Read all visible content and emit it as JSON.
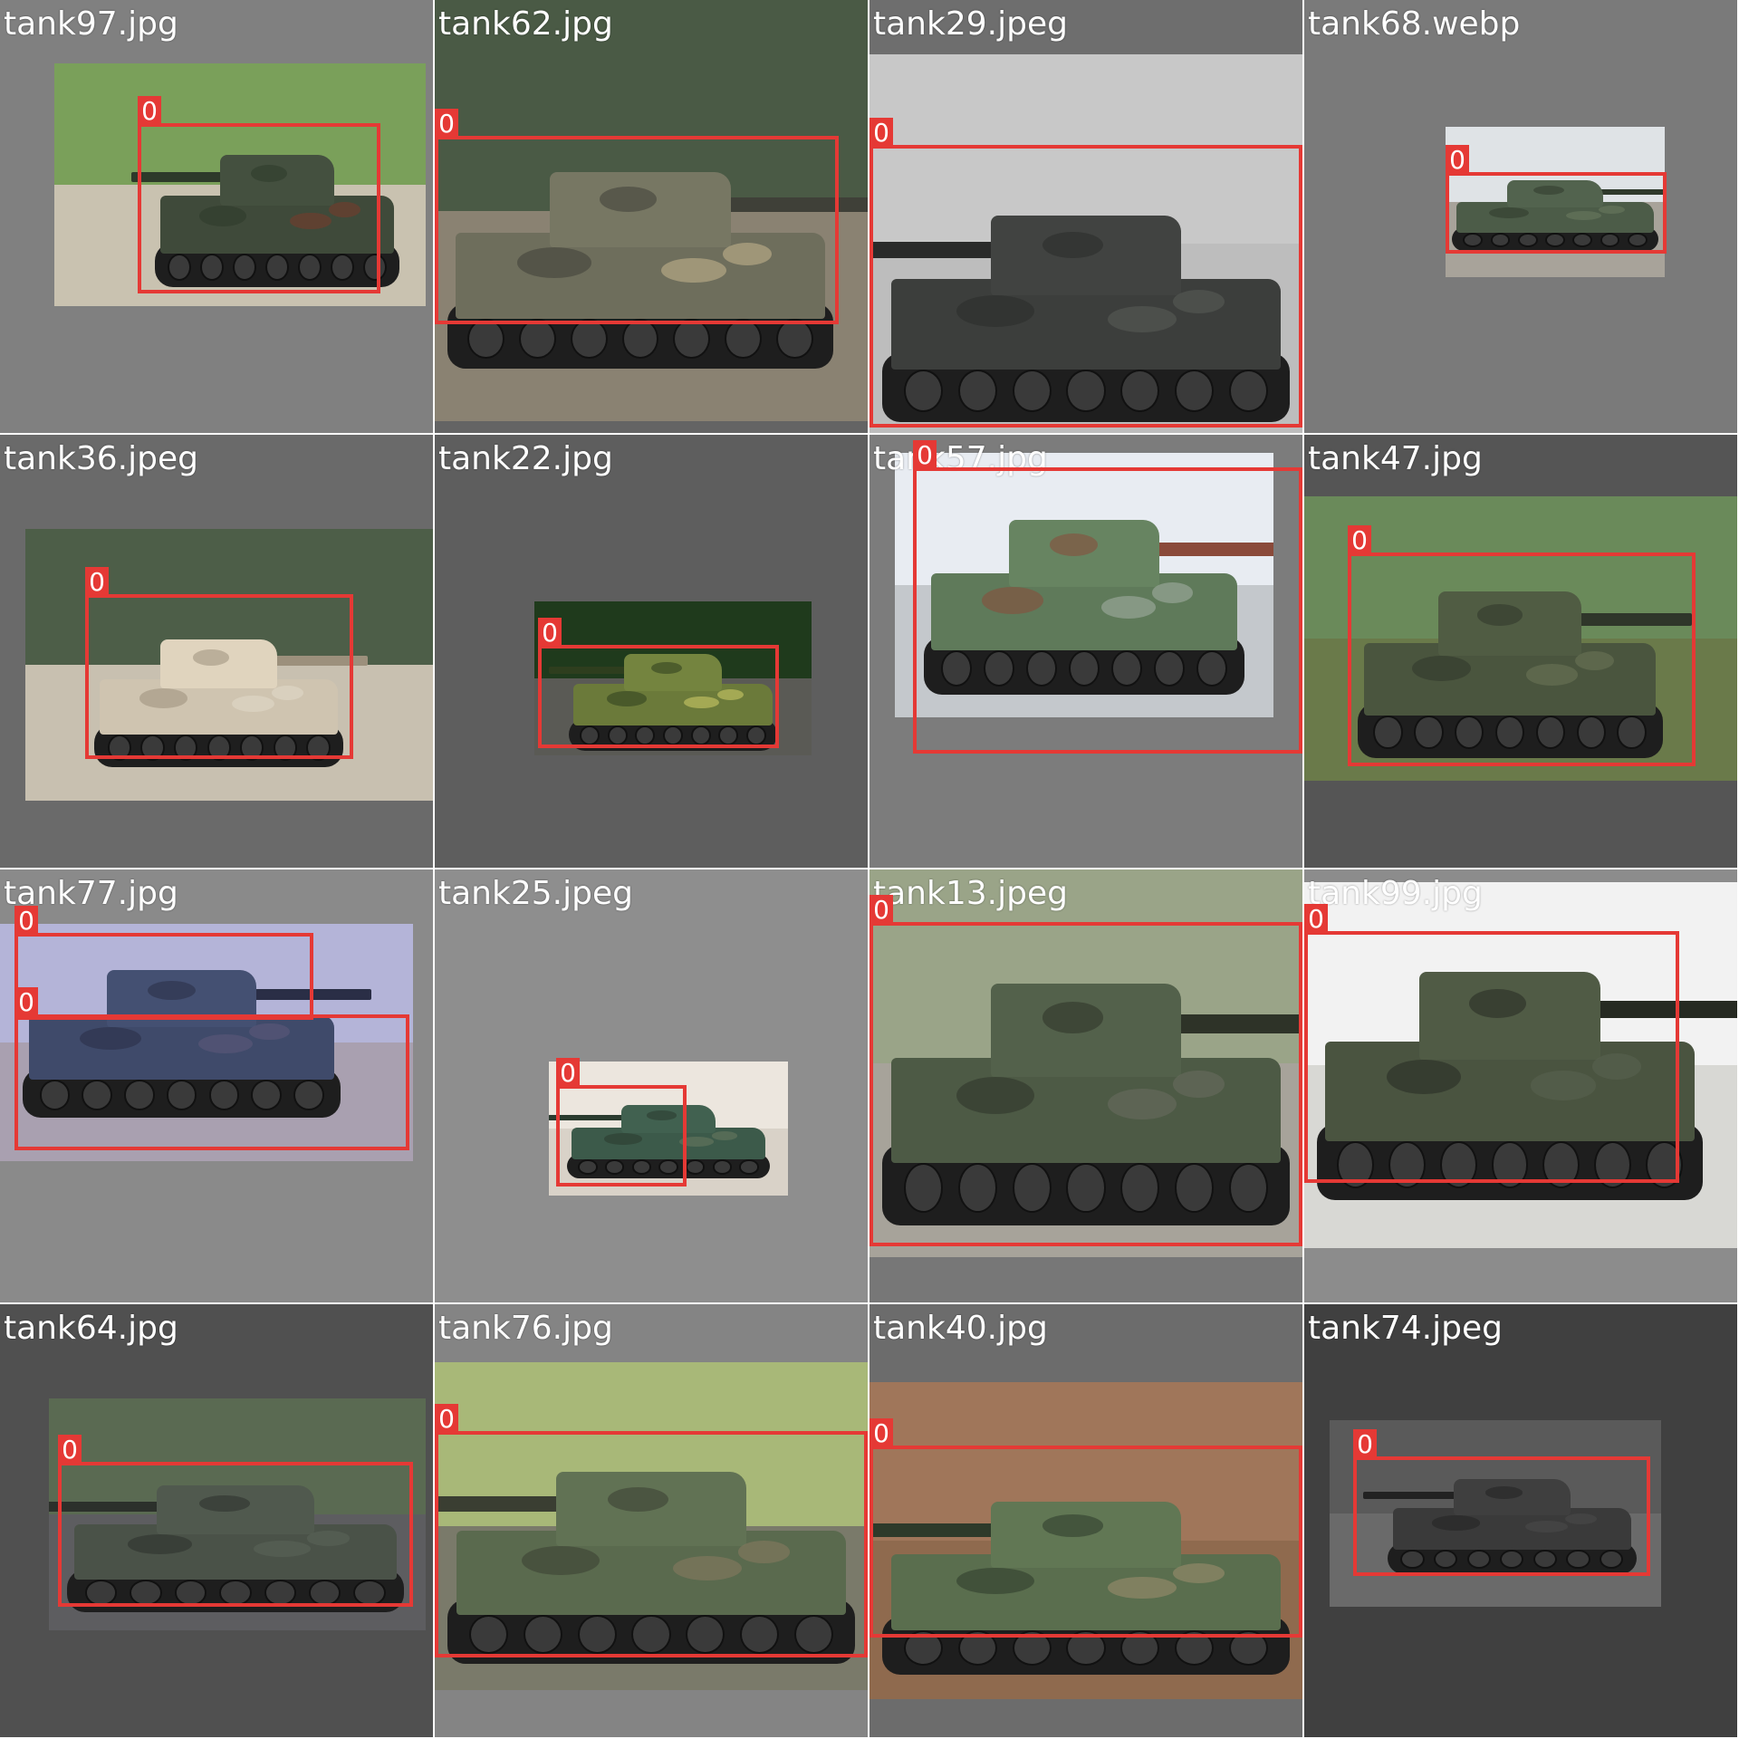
{
  "colors": {
    "bbox": "#e53935",
    "label_text": "#ffffff"
  },
  "detection_label": "0",
  "tiles": [
    {
      "file": "tank97.jpg",
      "label_count": 1
    },
    {
      "file": "tank62.jpg",
      "label_count": 1
    },
    {
      "file": "tank29.jpeg",
      "label_count": 1
    },
    {
      "file": "tank68.webp",
      "label_count": 1
    },
    {
      "file": "tank36.jpeg",
      "label_count": 1
    },
    {
      "file": "tank22.jpg",
      "label_count": 1
    },
    {
      "file": "tank57.jpg",
      "label_count": 1
    },
    {
      "file": "tank47.jpg",
      "label_count": 1
    },
    {
      "file": "tank77.jpg",
      "label_count": 2
    },
    {
      "file": "tank25.jpeg",
      "label_count": 1
    },
    {
      "file": "tank13.jpeg",
      "label_count": 1
    },
    {
      "file": "tank99.jpg",
      "label_count": 1
    },
    {
      "file": "tank64.jpg",
      "label_count": 1
    },
    {
      "file": "tank76.jpg",
      "label_count": 1
    },
    {
      "file": "tank40.jpg",
      "label_count": 1
    },
    {
      "file": "tank74.jpeg",
      "label_count": 1
    }
  ]
}
